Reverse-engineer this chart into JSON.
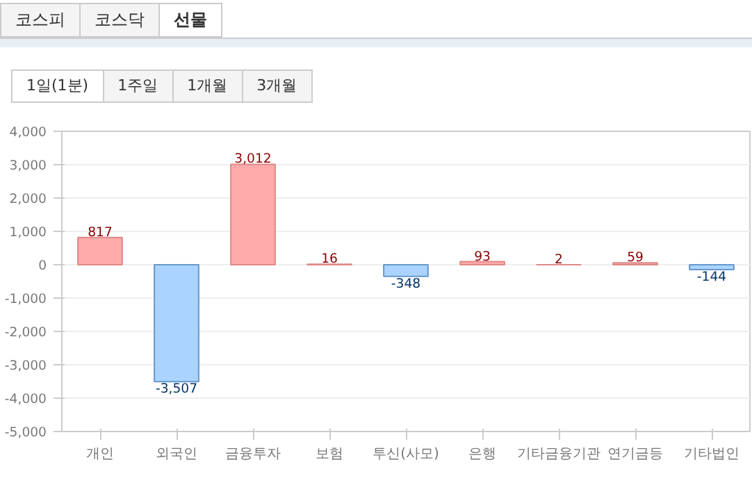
{
  "chart_data": {
    "type": "bar",
    "categories": [
      "개인",
      "외국인",
      "금융투자",
      "보험",
      "투신(사모)",
      "은행",
      "기타금융기관",
      "연기금등",
      "기타법인"
    ],
    "values": [
      817,
      -3507,
      3012,
      16,
      -348,
      93,
      2,
      59,
      -144
    ],
    "value_labels": [
      "817",
      "-3,507",
      "3,012",
      "16",
      "-348",
      "93",
      "2",
      "59",
      "-144"
    ],
    "colors": [
      "#ffaaaa",
      "#aad4ff",
      "#ffaaaa",
      "#ffaaaa",
      "#aad4ff",
      "#ffaaaa",
      "#ffaaaa",
      "#ffaaaa",
      "#aad4ff"
    ],
    "ylim": [
      -5000,
      4000
    ],
    "yticks": [
      {
        "value": -5000,
        "label": "-5,000"
      },
      {
        "value": -4000,
        "label": "-4,000"
      },
      {
        "value": -3000,
        "label": "-3,000"
      },
      {
        "value": -2000,
        "label": "-2,000"
      },
      {
        "value": -1000,
        "label": "-1,000"
      },
      0,
      {
        "value": 1000,
        "label": "1,000"
      },
      {
        "value": 2000,
        "label": "2,000"
      },
      {
        "value": 3000,
        "label": "3,000"
      },
      {
        "value": 4000,
        "label": "4,000"
      }
    ],
    "grid": "y",
    "annotations": [
      "코스피",
      "코스닥",
      "선물",
      "1일(1분)",
      "1주일",
      "1개월",
      "3개월"
    ]
  }
}
